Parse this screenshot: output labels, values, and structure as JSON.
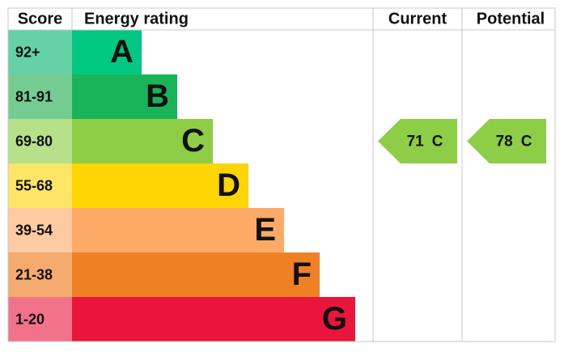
{
  "header": {
    "score": "Score",
    "rating": "Energy rating",
    "current": "Current",
    "potential": "Potential"
  },
  "bands": [
    {
      "score": "92+",
      "letter": "A"
    },
    {
      "score": "81-91",
      "letter": "B"
    },
    {
      "score": "69-80",
      "letter": "C"
    },
    {
      "score": "55-68",
      "letter": "D"
    },
    {
      "score": "39-54",
      "letter": "E"
    },
    {
      "score": "21-38",
      "letter": "F"
    },
    {
      "score": "1-20",
      "letter": "G"
    }
  ],
  "current": {
    "value": 71,
    "band": "C"
  },
  "potential": {
    "value": 78,
    "band": "C"
  }
}
